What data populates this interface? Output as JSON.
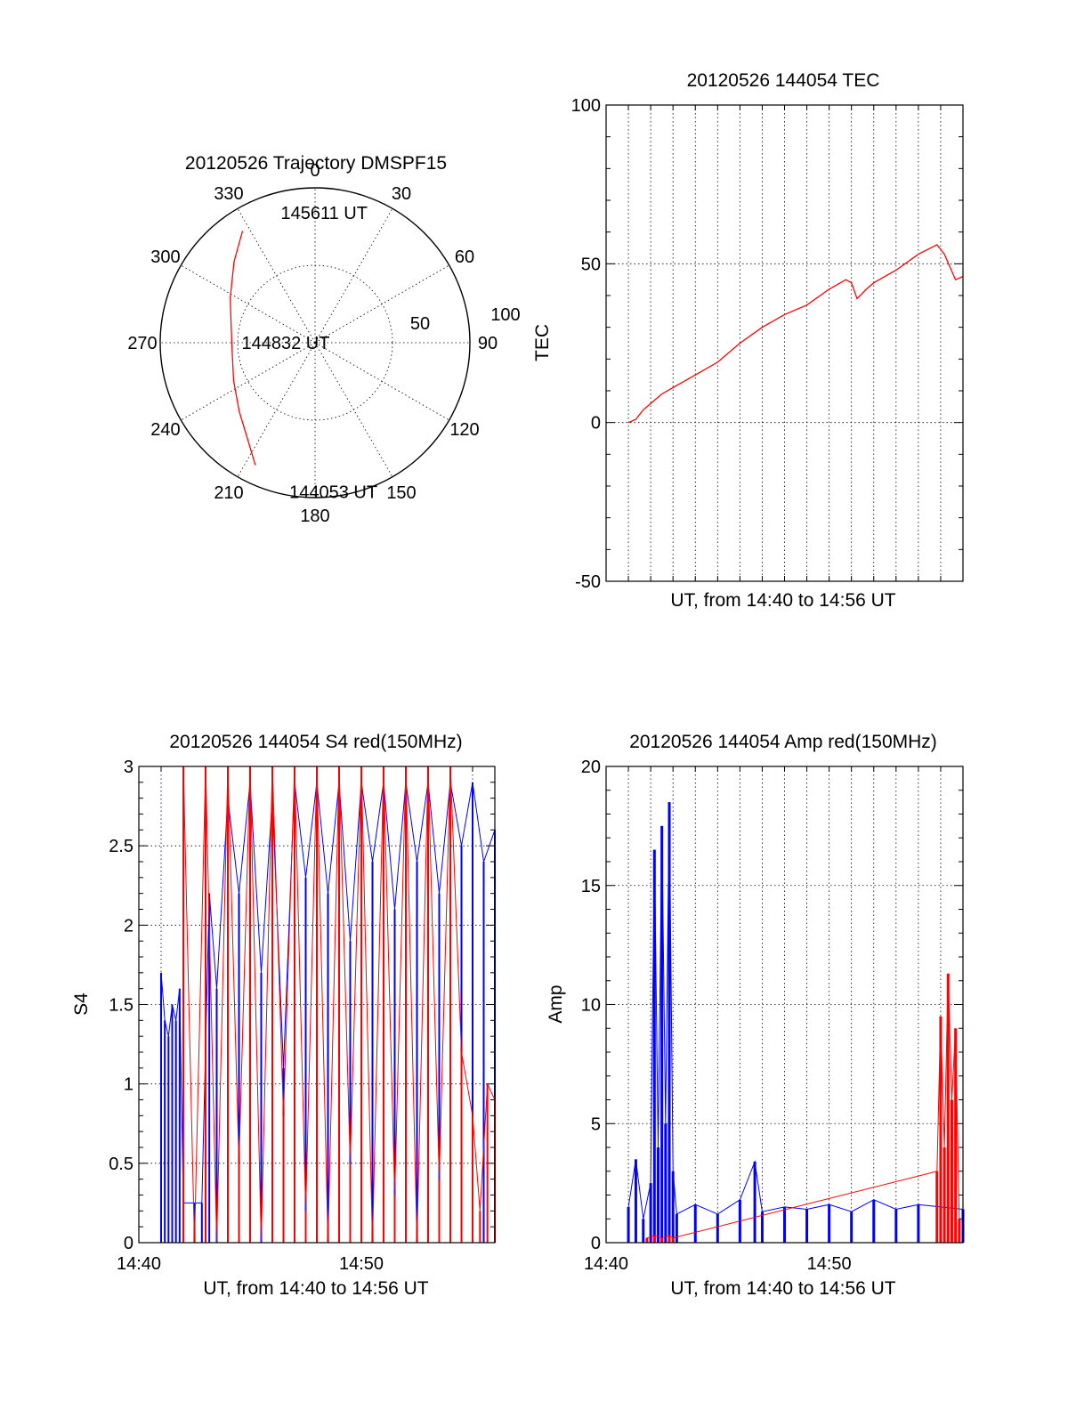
{
  "chart_data": [
    {
      "type": "polar",
      "title": "20120526 Trajectory DMSPF15",
      "angle_labels": [
        "0",
        "30",
        "60",
        "90",
        "120",
        "150",
        "180",
        "210",
        "240",
        "270",
        "300",
        "330"
      ],
      "radial_labels": [
        "50",
        "100"
      ],
      "rlim": [
        0,
        100
      ],
      "grid": true,
      "series": [
        {
          "color": "#ff0000",
          "points": [
            {
              "az": 206,
              "r": 88
            },
            {
              "az": 215,
              "r": 76
            },
            {
              "az": 228,
              "r": 66
            },
            {
              "az": 245,
              "r": 58
            },
            {
              "az": 262,
              "r": 54
            },
            {
              "az": 280,
              "r": 55
            },
            {
              "az": 298,
              "r": 62
            },
            {
              "az": 315,
              "r": 74
            },
            {
              "az": 327,
              "r": 86
            }
          ]
        }
      ],
      "annotations": [
        {
          "text": "145611 UT",
          "az": 4,
          "r": 84
        },
        {
          "text": "144832 UT",
          "az": 270,
          "r": 19
        },
        {
          "text": "144053 UT",
          "az": 173,
          "r": 97
        }
      ]
    },
    {
      "type": "line",
      "title": "20120526 144054 TEC",
      "xlabel": "UT, from 14:40 to 14:56 UT",
      "ylabel": "TEC",
      "xlim": [
        "14:40",
        "14:56"
      ],
      "ylim": [
        -50,
        100
      ],
      "yticks": [
        "-50",
        "0",
        "50",
        "100"
      ],
      "xticks": [],
      "grid": true,
      "series": [
        {
          "color": "#ff0000",
          "x": [
            "14:41:00",
            "14:41:20",
            "14:41:40",
            "14:42:00",
            "14:42:30",
            "14:43:00",
            "14:44:00",
            "14:45:00",
            "14:46:00",
            "14:47:00",
            "14:48:00",
            "14:49:00",
            "14:50:00",
            "14:50:45",
            "14:51:00",
            "14:51:15",
            "14:51:40",
            "14:52:00",
            "14:53:00",
            "14:54:00",
            "14:54:50",
            "14:55:10",
            "14:55:40",
            "14:56:00"
          ],
          "y": [
            0,
            1,
            4,
            6,
            9,
            11,
            15,
            19,
            25,
            30,
            34,
            37,
            42,
            45,
            44,
            39,
            42,
            44,
            48,
            53,
            56,
            53,
            45,
            46
          ]
        }
      ]
    },
    {
      "type": "line",
      "title": "20120526 144054 S4 red(150MHz)",
      "xlabel": "UT, from 14:40 to 14:56 UT",
      "ylabel": "S4",
      "xlim": [
        "14:40",
        "14:56"
      ],
      "ylim": [
        0,
        3
      ],
      "yticks": [
        "0",
        "0.5",
        "1",
        "1.5",
        "2",
        "2.5",
        "3"
      ],
      "xticks": [
        "14:40",
        "14:50"
      ],
      "grid": true,
      "series": [
        {
          "color": "#0000ff",
          "x": [
            "14:41:00",
            "14:41:10",
            "14:41:20",
            "14:41:30",
            "14:41:40",
            "14:41:50",
            "14:42:00",
            "14:42:30",
            "14:42:50",
            "14:43:10",
            "14:43:30",
            "14:44:00",
            "14:44:30",
            "14:45:00",
            "14:45:30",
            "14:46:00",
            "14:46:30",
            "14:47:00",
            "14:47:30",
            "14:48:00",
            "14:48:30",
            "14:49:00",
            "14:49:30",
            "14:50:00",
            "14:50:30",
            "14:51:00",
            "14:51:30",
            "14:52:00",
            "14:52:30",
            "14:53:00",
            "14:53:30",
            "14:54:00",
            "14:54:30",
            "14:55:00",
            "14:55:30",
            "14:56:00"
          ],
          "y": [
            1.7,
            1.4,
            1.3,
            1.5,
            1.4,
            1.6,
            0.25,
            0.25,
            0.25,
            2.2,
            1.6,
            2.8,
            2.2,
            2.9,
            1.7,
            2.8,
            1.1,
            2.9,
            2.3,
            2.9,
            2.2,
            2.9,
            1.9,
            2.9,
            2.4,
            2.9,
            2.1,
            2.9,
            2.4,
            2.9,
            2.2,
            2.9,
            2.5,
            2.9,
            2.4,
            2.6
          ]
        },
        {
          "color": "#ff0000",
          "x": [
            "14:42:00",
            "14:42:30",
            "14:43:00",
            "14:43:30",
            "14:44:00",
            "14:44:30",
            "14:45:00",
            "14:45:30",
            "14:46:00",
            "14:46:30",
            "14:47:00",
            "14:47:30",
            "14:48:00",
            "14:48:30",
            "14:49:00",
            "14:49:30",
            "14:50:00",
            "14:50:30",
            "14:51:00",
            "14:51:30",
            "14:52:00",
            "14:52:30",
            "14:53:00",
            "14:53:30",
            "14:54:00",
            "14:54:30",
            "14:55:00",
            "14:55:20",
            "14:55:40",
            "14:56:00"
          ],
          "y": [
            3,
            0,
            3,
            0,
            3,
            0.5,
            3,
            0,
            3,
            0.8,
            3,
            0.2,
            3,
            0,
            3,
            0.5,
            3,
            0,
            3,
            0.3,
            3,
            0,
            3,
            0.4,
            3,
            1.2,
            0.8,
            0.2,
            1.0,
            0.9
          ]
        }
      ]
    },
    {
      "type": "line",
      "title": "20120526 144054 Amp red(150MHz)",
      "xlabel": "UT, from 14:40 to 14:56 UT",
      "ylabel": "Amp",
      "xlim": [
        "14:40",
        "14:56"
      ],
      "ylim": [
        0,
        20
      ],
      "yticks": [
        "0",
        "5",
        "10",
        "15",
        "20"
      ],
      "xticks": [
        "14:40",
        "14:50"
      ],
      "grid": true,
      "series": [
        {
          "color": "#0000ff",
          "x": [
            "14:41:00",
            "14:41:20",
            "14:41:40",
            "14:42:00",
            "14:42:10",
            "14:42:20",
            "14:42:30",
            "14:42:40",
            "14:42:50",
            "14:43:00",
            "14:43:10",
            "14:44:00",
            "14:45:00",
            "14:46:00",
            "14:46:40",
            "14:47:00",
            "14:48:00",
            "14:49:00",
            "14:50:00",
            "14:51:00",
            "14:52:00",
            "14:53:00",
            "14:54:00",
            "14:55:00",
            "14:56:00"
          ],
          "y": [
            1.5,
            3.5,
            1.0,
            2.5,
            16.5,
            4.0,
            17.5,
            5.0,
            18.5,
            3.0,
            1.2,
            1.6,
            1.2,
            1.8,
            3.4,
            1.3,
            1.5,
            1.4,
            1.6,
            1.3,
            1.8,
            1.4,
            1.6,
            1.5,
            1.4
          ]
        },
        {
          "color": "#ff0000",
          "x": [
            "14:41:50",
            "14:42:10",
            "14:42:30",
            "14:42:50",
            "14:43:00",
            "14:54:50",
            "14:55:00",
            "14:55:10",
            "14:55:20",
            "14:55:30",
            "14:55:40",
            "14:55:50"
          ],
          "y": [
            0.2,
            0.3,
            0.2,
            0.3,
            0.2,
            3.0,
            9.5,
            4.0,
            11.3,
            6.0,
            9.0,
            1.0
          ]
        }
      ]
    }
  ]
}
